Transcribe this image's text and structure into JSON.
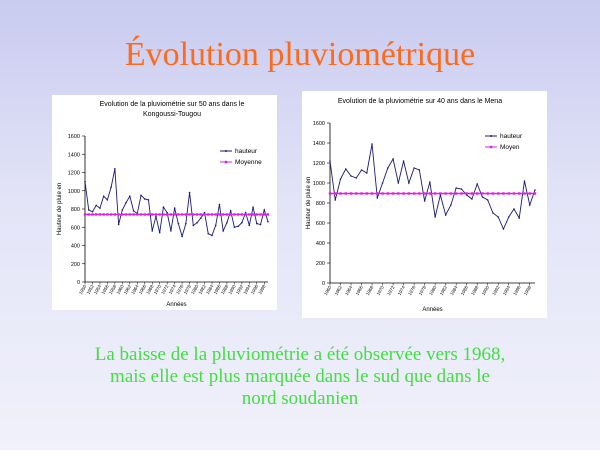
{
  "slide": {
    "title": "Évolution  pluviométrique",
    "caption_lines": [
      "La baisse de la pluviométrie a été observée vers 1968,",
      "mais elle est plus marquée dans le sud que dans le",
      "nord soudanien"
    ]
  },
  "colors": {
    "title": "#ff6a1a",
    "caption": "#40e040",
    "series_line": "#1a1a7a",
    "mean_line": "#e020e0"
  },
  "chart_data": [
    {
      "type": "line",
      "title_lines": [
        "Evolution de la pluviométrie sur 50 ans dans le",
        "Kongoussi-Tougou"
      ],
      "xlabel": "Années",
      "ylabel": "Hauteur de pluie en",
      "ylim": [
        0,
        1600
      ],
      "yticks": [
        0,
        200,
        400,
        600,
        800,
        1000,
        1200,
        1400,
        1600
      ],
      "x": [
        1950,
        1951,
        1952,
        1953,
        1954,
        1955,
        1956,
        1957,
        1958,
        1959,
        1960,
        1961,
        1962,
        1963,
        1964,
        1965,
        1966,
        1967,
        1968,
        1969,
        1970,
        1971,
        1972,
        1973,
        1974,
        1975,
        1976,
        1977,
        1978,
        1979,
        1980,
        1981,
        1982,
        1983,
        1984,
        1985,
        1986,
        1987,
        1988,
        1989,
        1990,
        1991,
        1992,
        1993,
        1994,
        1995,
        1996,
        1997,
        1998,
        1999
      ],
      "xtick_labels": [
        "1950",
        "1952",
        "1954",
        "1956",
        "1958",
        "1960",
        "1962",
        "1964",
        "1966",
        "1968",
        "1970",
        "1972",
        "1974",
        "1976",
        "1978",
        "1980",
        "1982",
        "1984",
        "1986",
        "1988",
        "1990",
        "1992",
        "1994",
        "1996",
        "1998"
      ],
      "legend_position": "top-right",
      "grid": false,
      "series": [
        {
          "name": "hauteur",
          "values": [
            1100,
            790,
            770,
            840,
            810,
            940,
            900,
            1040,
            1240,
            630,
            790,
            870,
            940,
            780,
            750,
            950,
            910,
            900,
            560,
            720,
            540,
            820,
            760,
            560,
            810,
            640,
            500,
            640,
            980,
            620,
            650,
            700,
            760,
            530,
            510,
            620,
            850,
            560,
            650,
            780,
            600,
            610,
            650,
            760,
            620,
            820,
            640,
            630,
            790,
            660
          ]
        },
        {
          "name": "Moyenne",
          "values": [
            740,
            740,
            740,
            740,
            740,
            740,
            740,
            740,
            740,
            740,
            740,
            740,
            740,
            740,
            740,
            740,
            740,
            740,
            740,
            740,
            740,
            740,
            740,
            740,
            740,
            740,
            740,
            740,
            740,
            740,
            740,
            740,
            740,
            740,
            740,
            740,
            740,
            740,
            740,
            740,
            740,
            740,
            740,
            740,
            740,
            740,
            740,
            740,
            740,
            740
          ]
        }
      ]
    },
    {
      "type": "line",
      "title_lines": [
        "Evolution de la pluviométrie sur 40 ans dans le Mena"
      ],
      "xlabel": "Années",
      "ylabel": "Hauteur de pluie en",
      "ylim": [
        0,
        1600
      ],
      "yticks": [
        0,
        200,
        400,
        600,
        800,
        1000,
        1200,
        1400,
        1600
      ],
      "x": [
        1960,
        1961,
        1962,
        1963,
        1964,
        1965,
        1966,
        1967,
        1968,
        1969,
        1970,
        1971,
        1972,
        1973,
        1974,
        1975,
        1976,
        1977,
        1978,
        1979,
        1980,
        1981,
        1982,
        1983,
        1984,
        1985,
        1986,
        1987,
        1988,
        1989,
        1990,
        1991,
        1992,
        1993,
        1994,
        1995,
        1996,
        1997,
        1998,
        1999
      ],
      "xtick_labels": [
        "1960",
        "1962",
        "1964",
        "1966",
        "1968",
        "1970",
        "1972",
        "1974",
        "1976",
        "1978",
        "1980",
        "1982",
        "1984",
        "1986",
        "1988",
        "1990",
        "1992",
        "1994",
        "1996",
        "1998"
      ],
      "legend_position": "top-right",
      "grid": false,
      "series": [
        {
          "name": "hauteur",
          "values": [
            1220,
            830,
            1040,
            1140,
            1070,
            1050,
            1130,
            1100,
            1390,
            850,
            1000,
            1150,
            1240,
            1000,
            1220,
            1000,
            1150,
            1130,
            820,
            1010,
            660,
            880,
            680,
            780,
            950,
            940,
            880,
            840,
            990,
            860,
            830,
            700,
            660,
            540,
            660,
            740,
            650,
            1020,
            780,
            930
          ]
        },
        {
          "name": "Moyen",
          "values": [
            895,
            895,
            895,
            895,
            895,
            895,
            895,
            895,
            895,
            895,
            895,
            895,
            895,
            895,
            895,
            895,
            895,
            895,
            895,
            895,
            895,
            895,
            895,
            895,
            895,
            895,
            895,
            895,
            895,
            895,
            895,
            895,
            895,
            895,
            895,
            895,
            895,
            895,
            895,
            895
          ]
        }
      ]
    }
  ]
}
